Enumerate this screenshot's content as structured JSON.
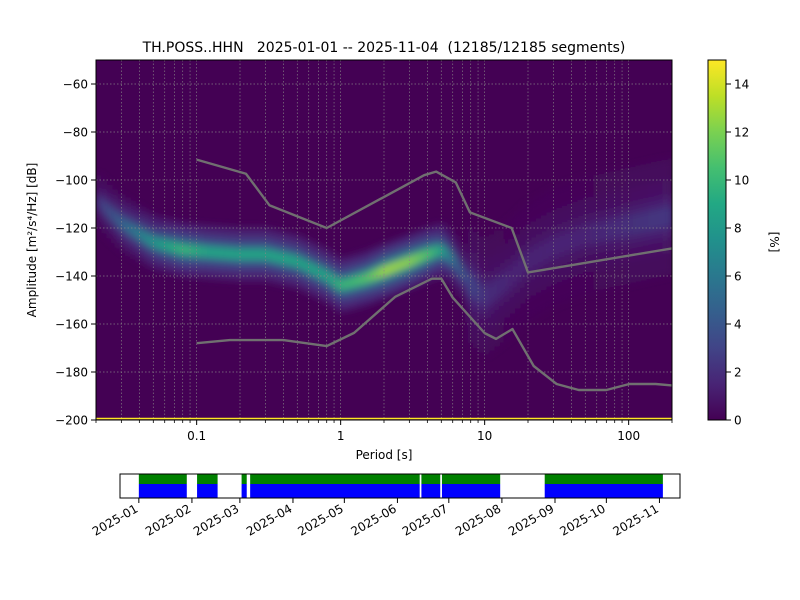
{
  "chart_data": [
    {
      "type": "heatmap",
      "title": "TH.POSS..HHN   2025-01-01 -- 2025-11-04  (12185/12185 segments)",
      "xlabel": "Period [s]",
      "ylabel": "Amplitude [m²/s⁴/Hz] [dB]",
      "xscale": "log",
      "xlim": [
        0.02,
        200
      ],
      "ylim": [
        -200,
        -50
      ],
      "xticks": [
        "0.1",
        "1",
        "10",
        "100"
      ],
      "yticks": [
        "−200",
        "−180",
        "−160",
        "−140",
        "−120",
        "−100",
        "−80",
        "−60"
      ],
      "grid": true,
      "colorbar": {
        "label": "[%]",
        "range": [
          0,
          15
        ],
        "ticks": [
          "0",
          "2",
          "4",
          "6",
          "8",
          "10",
          "12",
          "14"
        ],
        "colormap": "viridis"
      },
      "density_mode": {
        "period": [
          0.02,
          0.03,
          0.05,
          0.08,
          0.12,
          0.2,
          0.3,
          0.5,
          0.8,
          1.0,
          1.5,
          2.0,
          3.0,
          4.0,
          5.0,
          6.0,
          8.0,
          10,
          15,
          20,
          30,
          50,
          100,
          200
        ],
        "amplitude_db": [
          -108,
          -118,
          -126,
          -129,
          -130,
          -131,
          -131,
          -134,
          -140,
          -144,
          -141,
          -138,
          -134,
          -131,
          -129,
          -133,
          -144,
          -149,
          -141,
          -134,
          -128,
          -123,
          -119,
          -115
        ],
        "peak_percent": [
          2.5,
          5,
          8,
          10,
          9,
          9,
          9,
          9,
          9,
          10,
          11,
          13,
          12.5,
          11,
          9,
          6,
          3,
          2,
          1.5,
          1.5,
          1.5,
          1.5,
          2,
          2.5
        ]
      },
      "noise_models": [
        {
          "period": [
            0.1,
            0.17,
            0.4,
            0.8,
            1.24,
            2.4,
            4.3,
            5,
            6,
            10,
            12,
            15.6,
            21.9,
            31.6,
            45,
            70,
            101,
            154,
            200
          ],
          "amplitude_db": [
            -168,
            -166.7,
            -166.7,
            -169.2,
            -163.7,
            -148.6,
            -141.1,
            -141.1,
            -149.0,
            -163.8,
            -166.2,
            -162.1,
            -177.5,
            -185.0,
            -187.5,
            -187.5,
            -185.0,
            -185.0,
            -185.6
          ]
        },
        {
          "period": [
            0.1,
            0.22,
            0.32,
            0.8,
            3.8,
            4.6,
            6.3,
            7.9,
            15.4,
            20,
            200
          ],
          "amplitude_db": [
            -91.5,
            -97.4,
            -110.5,
            -120.0,
            -98.0,
            -96.5,
            -101.0,
            -113.5,
            -120.0,
            -138.5,
            -128.5
          ]
        }
      ]
    },
    {
      "type": "timeline",
      "xlim": [
        "2024-12-21",
        "2025-11-13"
      ],
      "xticks": [
        "2025-01",
        "2025-02",
        "2025-03",
        "2025-04",
        "2025-05",
        "2025-06",
        "2025-07",
        "2025-08",
        "2025-09",
        "2025-10",
        "2025-11"
      ],
      "colors": {
        "availability": "#0000ff",
        "psd_used": "#008000",
        "gap": "#ffffff"
      },
      "segments": [
        [
          "2025-01-01",
          "2025-01-29"
        ],
        [
          "2025-02-04",
          "2025-02-16"
        ],
        [
          "2025-03-02",
          "2025-03-05"
        ],
        [
          "2025-03-07",
          "2025-06-14"
        ],
        [
          "2025-06-15",
          "2025-06-26"
        ],
        [
          "2025-06-27",
          "2025-07-31"
        ],
        [
          "2025-08-26",
          "2025-11-03"
        ]
      ]
    }
  ]
}
